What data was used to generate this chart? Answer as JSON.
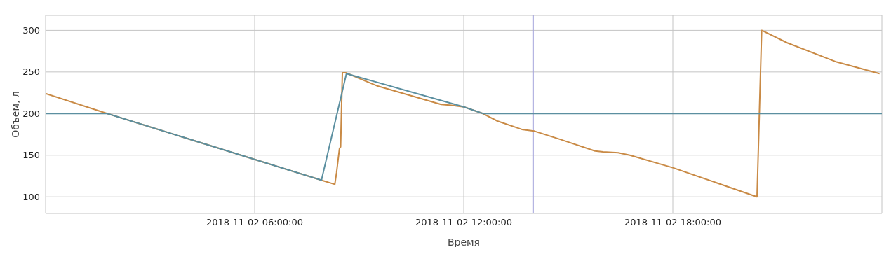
{
  "chart_data": {
    "type": "line",
    "xlabel": "Время",
    "ylabel": "Объем, л",
    "xlim": [
      "2018-11-02T00:00",
      "2018-11-03T00:00"
    ],
    "xticks": [
      {
        "value": "2018-11-02T06:00",
        "label": "2018-11-02 06:00:00"
      },
      {
        "value": "2018-11-02T12:00",
        "label": "2018-11-02 12:00:00"
      },
      {
        "value": "2018-11-02T18:00",
        "label": "2018-11-02 18:00:00"
      }
    ],
    "ylim": [
      80,
      318
    ],
    "yticks": [
      100,
      150,
      200,
      250,
      300
    ],
    "grid": true,
    "marker": "none",
    "line_style": "solid",
    "ref_lines": [
      {
        "axis": "x",
        "value": "2018-11-02T14:00",
        "color": "#a6a6dc"
      }
    ],
    "series": [
      {
        "color": "#c98a45",
        "x": [
          "2018-11-02T00:00",
          "2018-11-02T01:46",
          "2018-11-02T07:55",
          "2018-11-02T08:18",
          "2018-11-02T08:21",
          "2018-11-02T08:26",
          "2018-11-02T08:28",
          "2018-11-02T08:31",
          "2018-11-02T08:37",
          "2018-11-02T09:32",
          "2018-11-02T11:21",
          "2018-11-02T11:39",
          "2018-11-02T12:00",
          "2018-11-02T12:33",
          "2018-11-02T12:58",
          "2018-11-02T13:40",
          "2018-11-02T14:01",
          "2018-11-02T14:46",
          "2018-11-02T15:46",
          "2018-11-02T16:00",
          "2018-11-02T16:26",
          "2018-11-02T16:46",
          "2018-11-02T18:00",
          "2018-11-02T20:25",
          "2018-11-02T20:33",
          "2018-11-02T21:17",
          "2018-11-02T22:42",
          "2018-11-02T23:56"
        ],
        "values": [
          224,
          200,
          120,
          115,
          129,
          158,
          160,
          249,
          249,
          233,
          211,
          210,
          208,
          200,
          191,
          181,
          179,
          169,
          155,
          154,
          153,
          150,
          135,
          100,
          300,
          285,
          262,
          248
        ]
      },
      {
        "color": "#5b8fa0",
        "x": [
          "2018-11-02T00:00",
          "2018-11-02T01:46",
          "2018-11-02T07:55",
          "2018-11-02T08:38",
          "2018-11-02T12:00",
          "2018-11-02T12:33",
          "2018-11-03T00:00"
        ],
        "values": [
          200,
          200,
          120,
          248,
          208,
          200,
          200
        ]
      }
    ]
  }
}
